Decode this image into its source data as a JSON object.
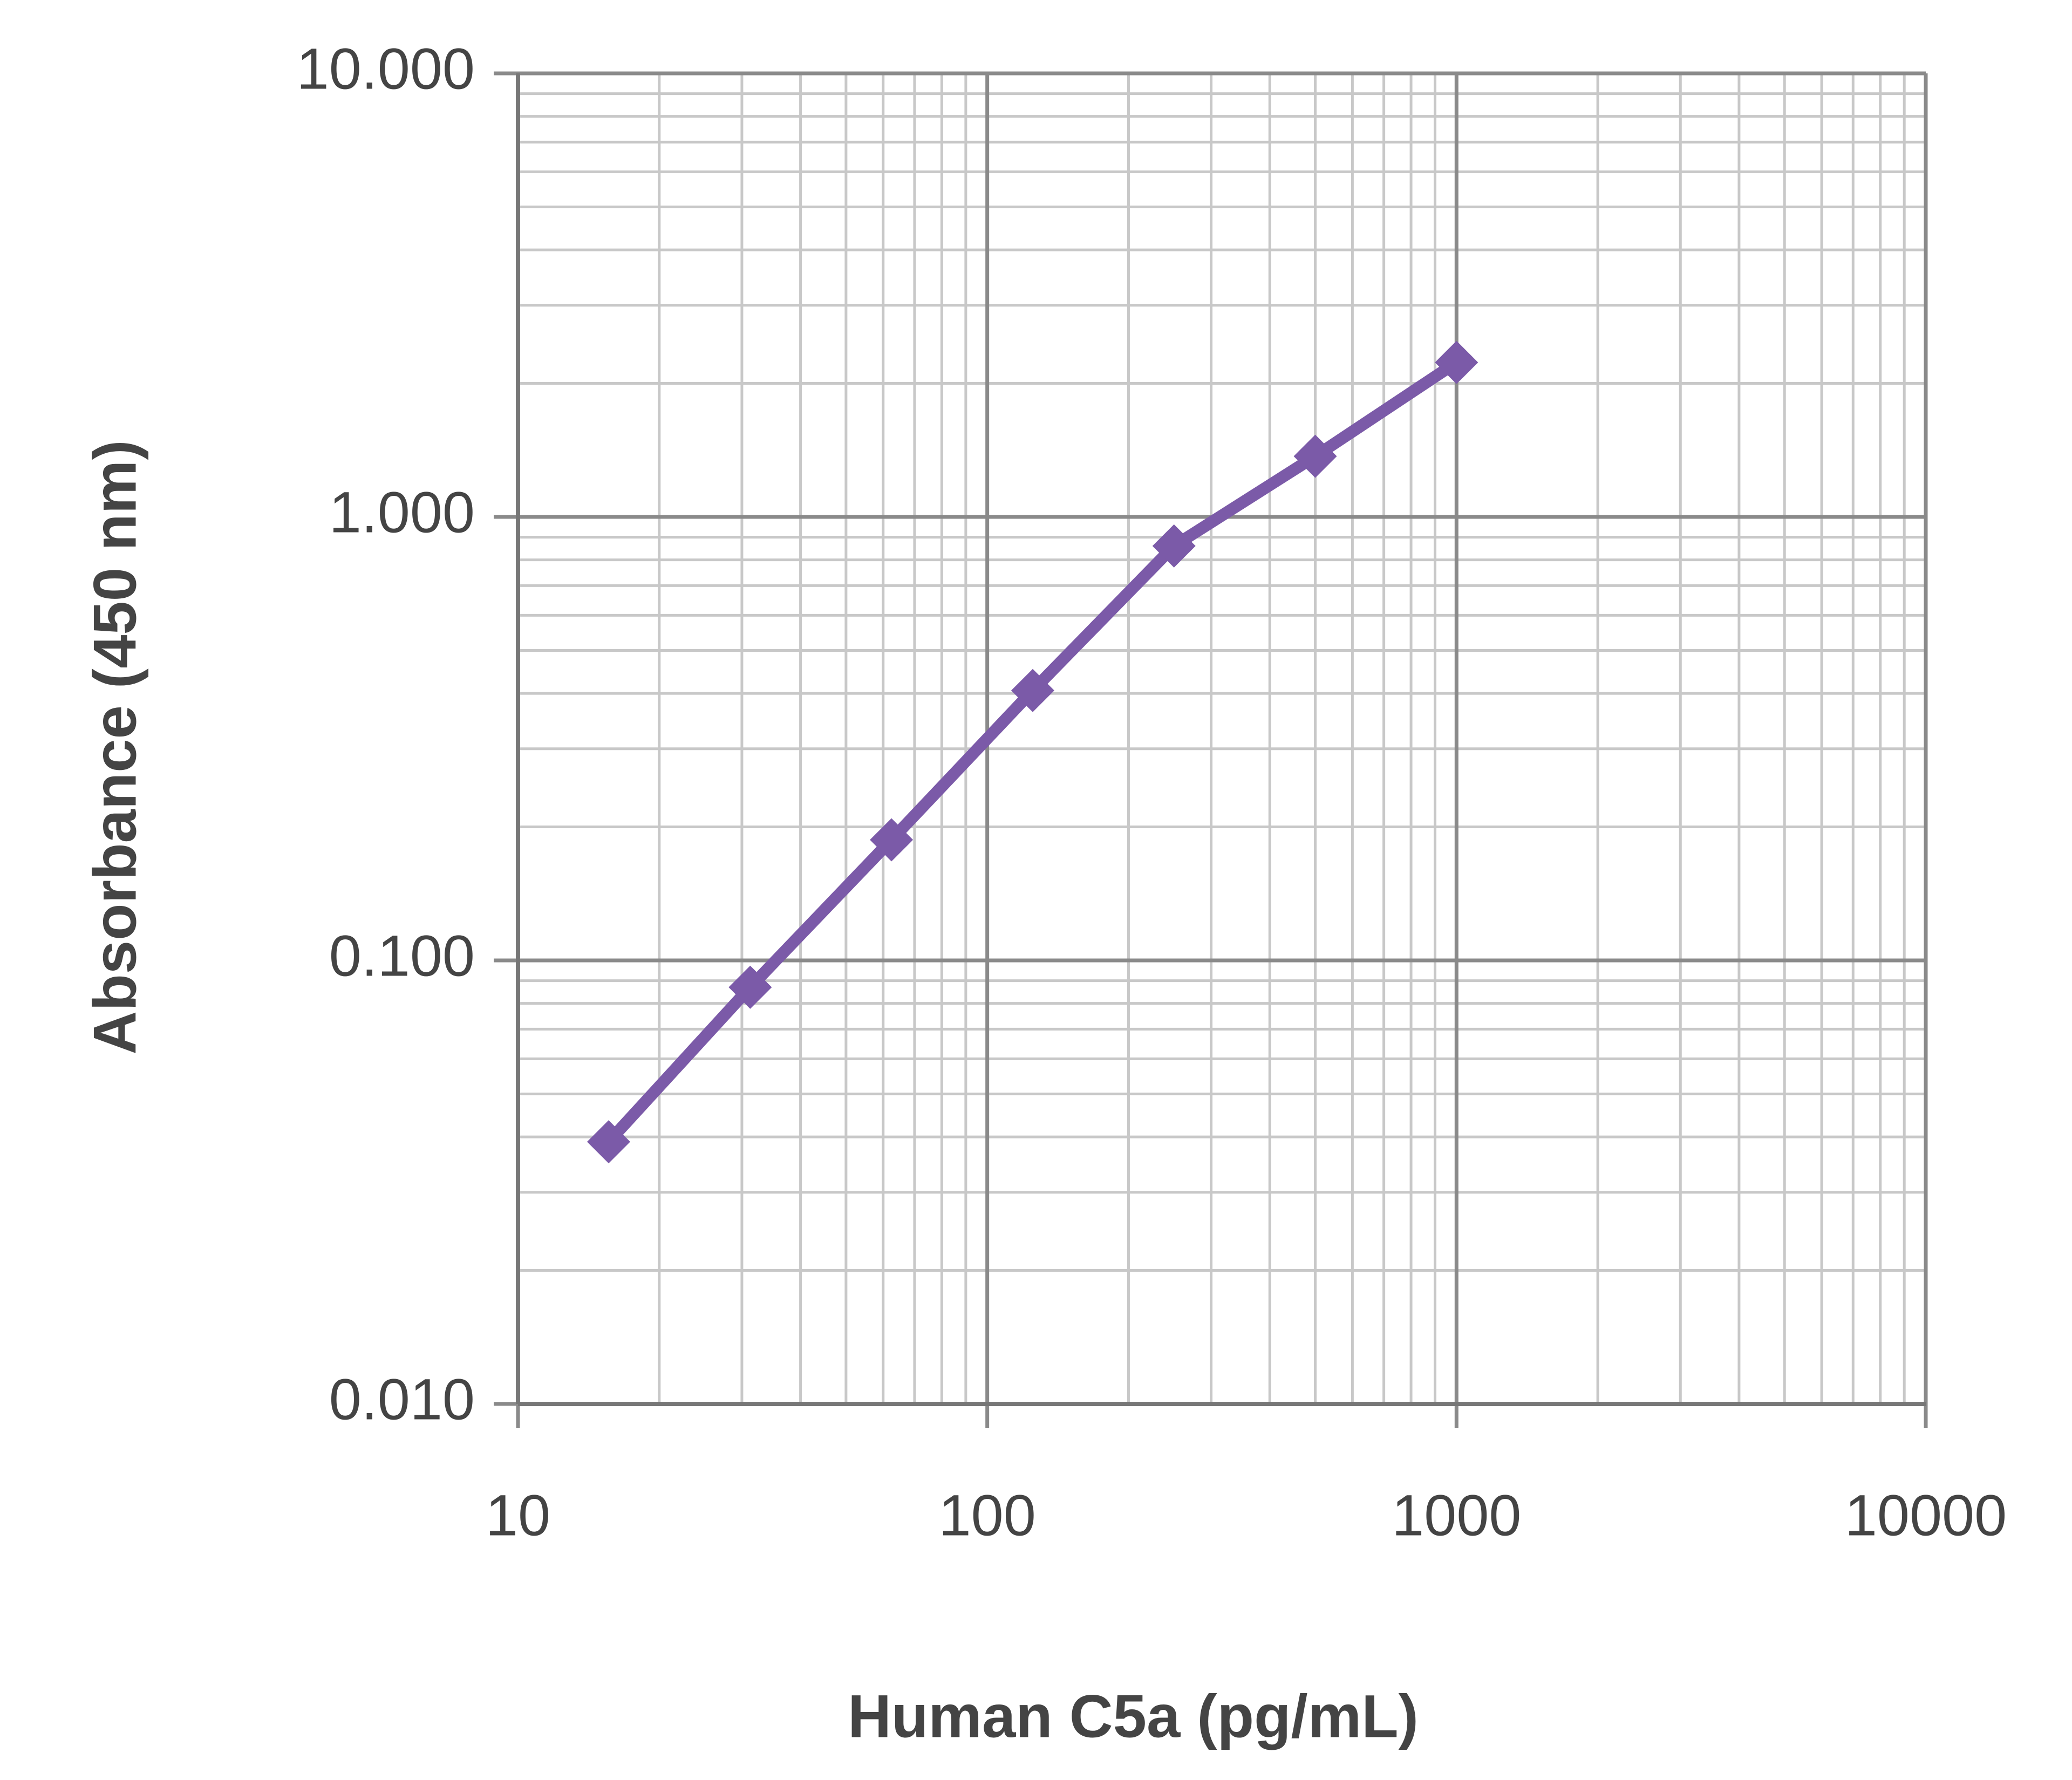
{
  "chart_data": {
    "type": "line",
    "x_label": "Human C5a (pg/mL)",
    "y_label": "Absorbance  (450 nm)",
    "x": [
      15.6,
      31.25,
      62.5,
      125,
      250,
      500,
      1000
    ],
    "series": [
      {
        "color": "#7b5aa8",
        "values": [
          0.039,
          0.087,
          0.187,
          0.406,
          0.86,
          1.37,
          2.23
        ]
      }
    ],
    "xlim": [
      10,
      10000
    ],
    "xticks": [
      10,
      100,
      1000,
      10000
    ],
    "ylim": [
      0.01,
      10
    ],
    "yticks": [
      {
        "value": 0.01,
        "label": "0.010"
      },
      {
        "value": 0.1,
        "label": "0.100"
      },
      {
        "value": 1,
        "label": "1.000"
      },
      {
        "value": 10,
        "label": "10.000"
      }
    ],
    "xscale": "log",
    "yscale": "log",
    "grid": true,
    "minor_grid": true
  }
}
